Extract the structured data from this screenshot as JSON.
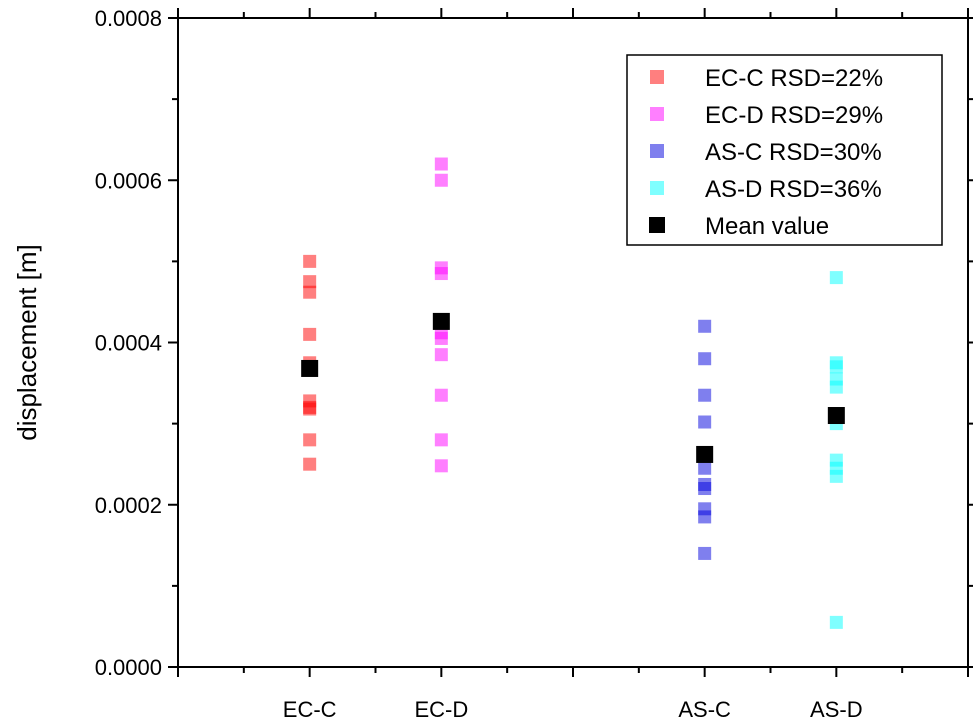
{
  "chart_data": {
    "type": "scatter",
    "title": "",
    "xlabel": "",
    "ylabel": "displacement [m]",
    "ylim": [
      0,
      0.0008
    ],
    "yticks": [
      "0.0000",
      "0.0002",
      "0.0004",
      "0.0006",
      "0.0008"
    ],
    "ytick_values": [
      0,
      0.0002,
      0.0004,
      0.0006,
      0.0008
    ],
    "categories": [
      "EC-C",
      "EC-D",
      "AS-C",
      "AS-D"
    ],
    "category_positions": [
      1,
      2,
      4,
      5
    ],
    "xlim": [
      0,
      6
    ],
    "legend_position": "top-right",
    "grid": false,
    "series": [
      {
        "name": "EC-C RSD=22%",
        "color": "#ff0000",
        "category": "EC-C",
        "values": [
          0.0005,
          0.000475,
          0.000462,
          0.00041,
          0.000375,
          0.000328,
          0.000318,
          0.00032,
          0.00028,
          0.00025
        ]
      },
      {
        "name": "EC-D RSD=29%",
        "color": "#ff00ff",
        "category": "EC-D",
        "values": [
          0.00062,
          0.0006,
          0.000492,
          0.000485,
          0.000412,
          0.000405,
          0.000385,
          0.000335,
          0.00028,
          0.000248
        ]
      },
      {
        "name": "AS-C RSD=30%",
        "color": "#0000dd",
        "category": "AS-C",
        "values": [
          0.00042,
          0.00038,
          0.000335,
          0.000302,
          0.000245,
          0.000225,
          0.00022,
          0.000195,
          0.000185,
          0.00014
        ]
      },
      {
        "name": "AS-D RSD=36%",
        "color": "#00ffff",
        "category": "AS-D",
        "values": [
          0.00048,
          0.000375,
          0.00037,
          0.000355,
          0.000345,
          0.0003,
          0.000255,
          0.000245,
          0.000235,
          5.5e-05
        ]
      },
      {
        "name": "Mean value",
        "color": "#000000",
        "values_by_category": [
          0.000368,
          0.000426,
          0.000262,
          0.00031
        ]
      }
    ]
  }
}
